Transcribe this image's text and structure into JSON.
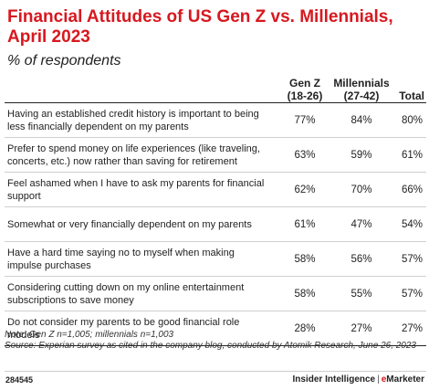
{
  "chart_data": {
    "type": "table",
    "title": "Financial Attitudes of US Gen Z vs. Millennials, April 2023",
    "subtitle": "% of respondents",
    "columns": [
      {
        "name": "Gen Z",
        "sub": "(18-26)"
      },
      {
        "name": "Millennials",
        "sub": "(27-42)"
      },
      {
        "name": "Total",
        "sub": ""
      }
    ],
    "rows": [
      {
        "label": "Having an established credit history is important to being less financially dependent on my parents",
        "values": [
          "77%",
          "84%",
          "80%"
        ]
      },
      {
        "label": "Prefer to spend money on life experiences (like traveling, concerts, etc.) now rather than saving for retirement",
        "values": [
          "63%",
          "59%",
          "61%"
        ]
      },
      {
        "label": "Feel ashamed when I have to ask my parents for financial support",
        "values": [
          "62%",
          "70%",
          "66%"
        ]
      },
      {
        "label": "Somewhat or very financially dependent on my parents",
        "values": [
          "61%",
          "47%",
          "54%"
        ]
      },
      {
        "label": "Have a hard time saying no to myself when making impulse purchases",
        "values": [
          "58%",
          "56%",
          "57%"
        ]
      },
      {
        "label": "Considering cutting down on my online entertainment subscriptions to save money",
        "values": [
          "58%",
          "55%",
          "57%"
        ]
      },
      {
        "label": "Do not consider my parents to be good financial role models",
        "values": [
          "28%",
          "27%",
          "27%"
        ]
      }
    ],
    "note": "Note: Gen Z n=1,005; millennials n=1,003",
    "source": "Source: Experian survey as cited in the company blog, conducted by Atomik Research, June 26, 2023"
  },
  "footer": {
    "chart_id": "284545",
    "brand_main": "Insider Intelligence",
    "brand_sep": "|",
    "brand_e": "e",
    "brand_rest": "Marketer"
  },
  "colors": {
    "title": "#d7181f",
    "text": "#222222",
    "rule_light": "#cfcfcf",
    "rule_dark": "#222222"
  }
}
